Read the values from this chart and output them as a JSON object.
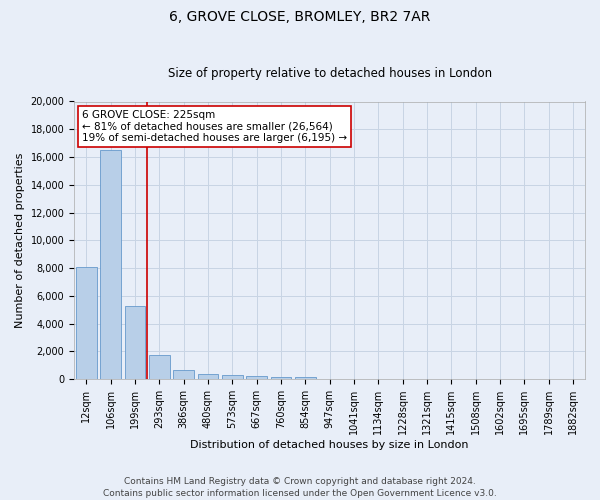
{
  "title1": "6, GROVE CLOSE, BROMLEY, BR2 7AR",
  "title2": "Size of property relative to detached houses in London",
  "xlabel": "Distribution of detached houses by size in London",
  "ylabel": "Number of detached properties",
  "annotation_title": "6 GROVE CLOSE: 225sqm",
  "annotation_line1": "← 81% of detached houses are smaller (26,564)",
  "annotation_line2": "19% of semi-detached houses are larger (6,195) →",
  "footer1": "Contains HM Land Registry data © Crown copyright and database right 2024.",
  "footer2": "Contains public sector information licensed under the Open Government Licence v3.0.",
  "bar_color": "#b8cfe8",
  "bar_edge_color": "#6699cc",
  "vline_color": "#cc0000",
  "annotation_box_color": "#cc0000",
  "grid_color": "#c8d4e4",
  "background_color": "#e8eef8",
  "categories": [
    "12sqm",
    "106sqm",
    "199sqm",
    "293sqm",
    "386sqm",
    "480sqm",
    "573sqm",
    "667sqm",
    "760sqm",
    "854sqm",
    "947sqm",
    "1041sqm",
    "1134sqm",
    "1228sqm",
    "1321sqm",
    "1415sqm",
    "1508sqm",
    "1602sqm",
    "1695sqm",
    "1789sqm",
    "1882sqm"
  ],
  "values": [
    8100,
    16500,
    5300,
    1750,
    700,
    350,
    280,
    200,
    170,
    130,
    0,
    0,
    0,
    0,
    0,
    0,
    0,
    0,
    0,
    0,
    0
  ],
  "ylim": [
    0,
    20000
  ],
  "yticks": [
    0,
    2000,
    4000,
    6000,
    8000,
    10000,
    12000,
    14000,
    16000,
    18000,
    20000
  ],
  "vline_bin_index": 2,
  "title1_fontsize": 10,
  "title2_fontsize": 8.5,
  "axis_label_fontsize": 8,
  "tick_fontsize": 7,
  "annotation_fontsize": 7.5,
  "footer_fontsize": 6.5
}
